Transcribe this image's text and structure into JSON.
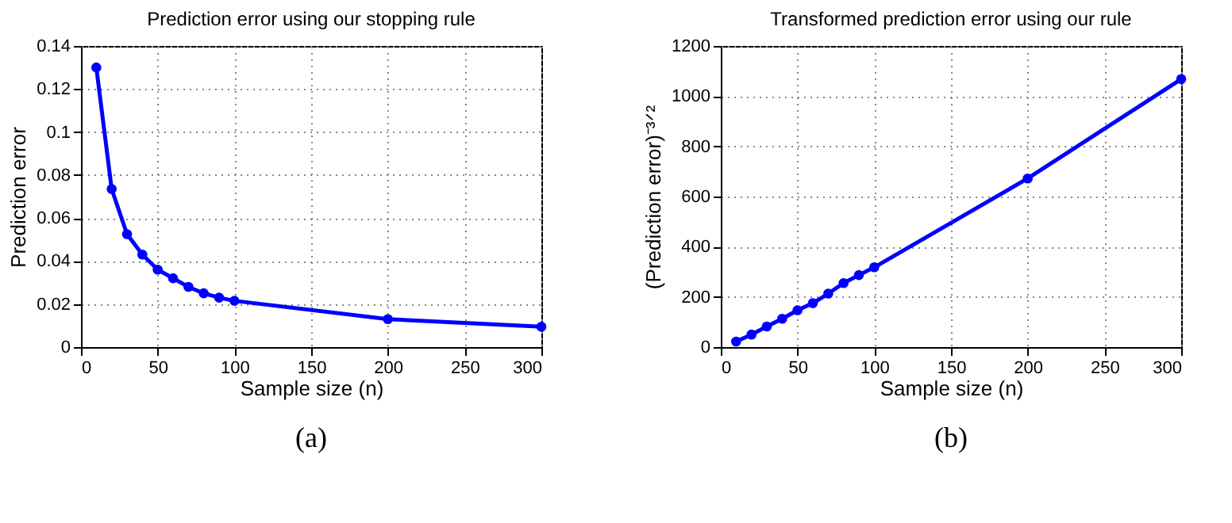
{
  "chart_data": [
    {
      "type": "line",
      "title": "Prediction error using our stopping rule",
      "xlabel": "Sample size (n)",
      "ylabel": "Prediction error",
      "annotations": [
        "(a)"
      ],
      "x": [
        10,
        20,
        30,
        40,
        50,
        60,
        70,
        80,
        90,
        100,
        200,
        300
      ],
      "series": [
        {
          "color": "#0000ff",
          "values": [
            0.13,
            0.0735,
            0.0525,
            0.043,
            0.036,
            0.032,
            0.028,
            0.025,
            0.023,
            0.0215,
            0.013,
            0.0095
          ]
        }
      ],
      "xlim": [
        0,
        300
      ],
      "xticks": [
        0,
        50,
        100,
        150,
        200,
        250,
        300
      ],
      "ylim": [
        0,
        0.14
      ],
      "yticks": [
        0,
        0.02,
        0.04,
        0.06,
        0.08,
        0.1,
        0.12,
        0.14
      ],
      "grid": true,
      "marker": "circle",
      "line_style": "solid"
    },
    {
      "type": "line",
      "title": "Transformed prediction error using our rule",
      "xlabel": "Sample size (n)",
      "ylabel": "(Prediction error)⁻³ᐟ²",
      "annotations": [
        "(b)"
      ],
      "x": [
        10,
        20,
        30,
        40,
        50,
        60,
        70,
        80,
        90,
        100,
        200,
        300
      ],
      "series": [
        {
          "color": "#0000ff",
          "values": [
            22,
            50,
            82,
            113,
            147,
            175,
            213,
            255,
            287,
            318,
            672,
            1068
          ]
        }
      ],
      "xlim": [
        0,
        300
      ],
      "xticks": [
        0,
        50,
        100,
        150,
        200,
        250,
        300
      ],
      "ylim": [
        0,
        1200
      ],
      "yticks": [
        0,
        200,
        400,
        600,
        800,
        1000,
        1200
      ],
      "grid": true,
      "marker": "circle",
      "line_style": "solid"
    }
  ]
}
